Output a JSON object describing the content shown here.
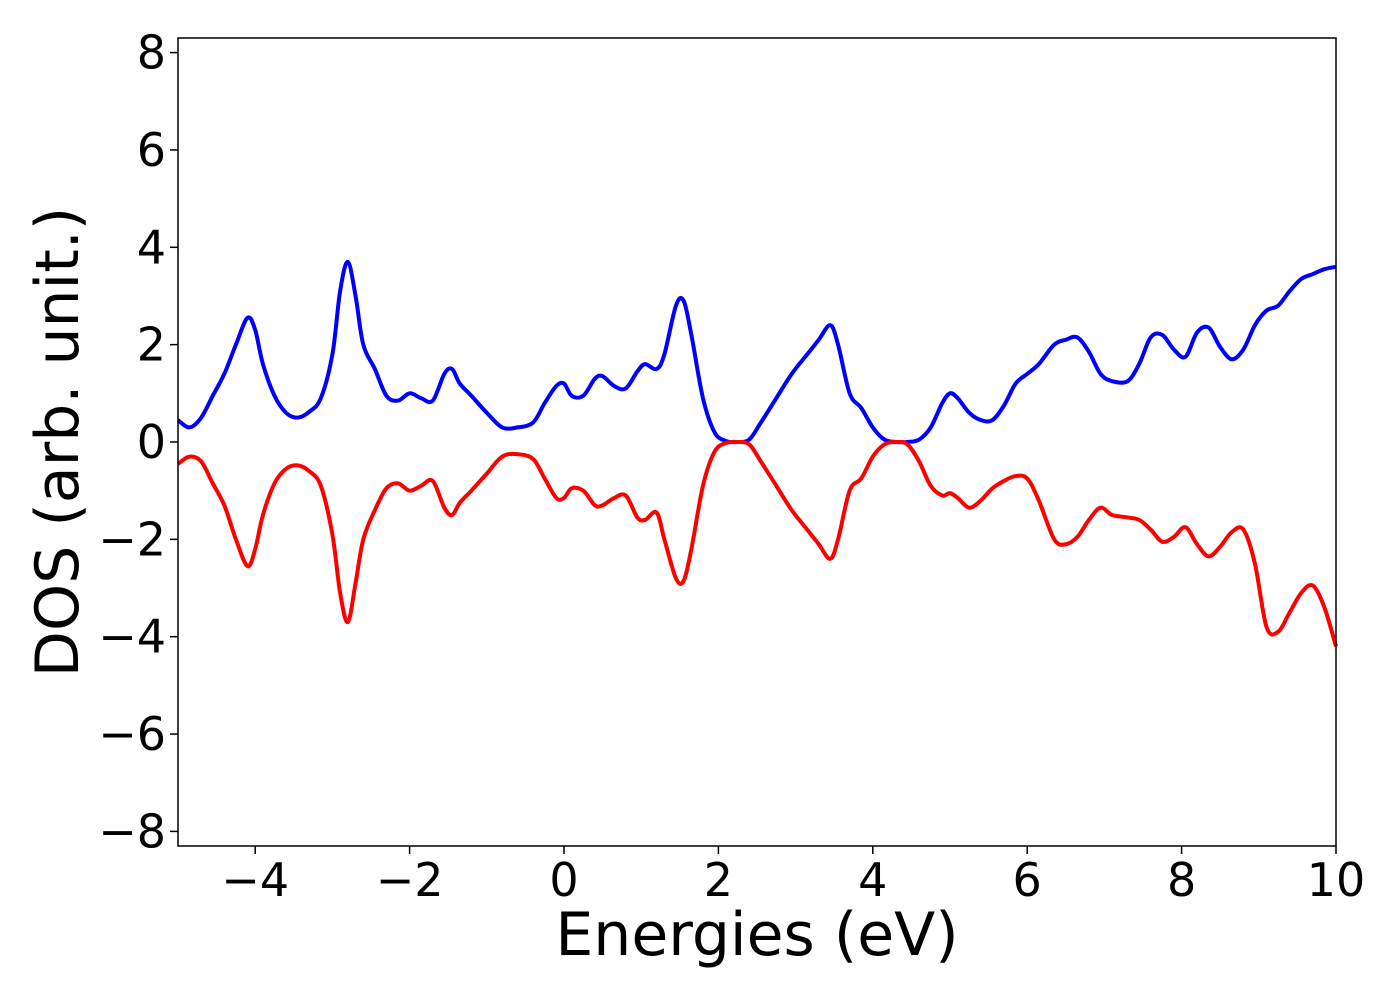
{
  "chart_data": {
    "type": "line",
    "title": "",
    "xlabel": "Energies (eV)",
    "ylabel": "DOS (arb. unit.)",
    "xlim": [
      -5,
      10
    ],
    "ylim": [
      -8.3,
      8.3
    ],
    "xticks": [
      -4,
      -2,
      0,
      2,
      4,
      6,
      8,
      10
    ],
    "xtick_labels": [
      "−4",
      "−2",
      "0",
      "2",
      "4",
      "6",
      "8",
      "10"
    ],
    "yticks": [
      8,
      6,
      4,
      2,
      0,
      -2,
      -4,
      -6,
      -8
    ],
    "ytick_labels": [
      "8",
      "6",
      "4",
      "2",
      "0",
      "−2",
      "−4",
      "−6",
      "−8"
    ],
    "grid": false,
    "series": [
      {
        "color": "#0000ff",
        "x": [
          -5.0,
          -4.85,
          -4.7,
          -4.55,
          -4.4,
          -4.25,
          -4.1,
          -4.0,
          -3.9,
          -3.75,
          -3.6,
          -3.45,
          -3.3,
          -3.15,
          -3.0,
          -2.9,
          -2.8,
          -2.7,
          -2.6,
          -2.45,
          -2.3,
          -2.15,
          -2.0,
          -1.85,
          -1.7,
          -1.55,
          -1.45,
          -1.35,
          -1.2,
          -1.0,
          -0.8,
          -0.6,
          -0.4,
          -0.25,
          -0.1,
          0.0,
          0.1,
          0.25,
          0.4,
          0.5,
          0.65,
          0.8,
          0.95,
          1.05,
          1.2,
          1.3,
          1.45,
          1.55,
          1.65,
          1.8,
          1.95,
          2.1,
          2.25,
          2.4,
          2.55,
          2.75,
          2.95,
          3.15,
          3.3,
          3.45,
          3.55,
          3.7,
          3.85,
          4.0,
          4.15,
          4.3,
          4.45,
          4.6,
          4.75,
          4.9,
          5.0,
          5.1,
          5.25,
          5.4,
          5.55,
          5.7,
          5.85,
          6.0,
          6.15,
          6.35,
          6.5,
          6.65,
          6.8,
          6.95,
          7.1,
          7.3,
          7.45,
          7.6,
          7.75,
          7.9,
          8.05,
          8.2,
          8.35,
          8.5,
          8.65,
          8.8,
          8.95,
          9.1,
          9.25,
          9.4,
          9.55,
          9.7,
          9.85,
          10.0
        ],
        "y": [
          0.45,
          0.3,
          0.5,
          0.95,
          1.4,
          2.0,
          2.55,
          2.3,
          1.6,
          0.95,
          0.6,
          0.5,
          0.62,
          0.9,
          1.8,
          3.1,
          3.7,
          3.0,
          2.0,
          1.5,
          0.95,
          0.85,
          1.0,
          0.9,
          0.85,
          1.4,
          1.5,
          1.2,
          0.95,
          0.6,
          0.3,
          0.3,
          0.4,
          0.8,
          1.15,
          1.2,
          0.95,
          0.95,
          1.3,
          1.35,
          1.15,
          1.1,
          1.45,
          1.6,
          1.5,
          1.8,
          2.8,
          2.9,
          2.2,
          0.9,
          0.2,
          0.02,
          0.0,
          0.05,
          0.4,
          0.9,
          1.4,
          1.8,
          2.1,
          2.4,
          2.0,
          1.0,
          0.7,
          0.3,
          0.05,
          0.0,
          0.0,
          0.05,
          0.3,
          0.8,
          1.0,
          0.9,
          0.6,
          0.45,
          0.45,
          0.75,
          1.2,
          1.4,
          1.6,
          2.0,
          2.1,
          2.15,
          1.85,
          1.4,
          1.25,
          1.25,
          1.6,
          2.15,
          2.2,
          1.9,
          1.75,
          2.25,
          2.35,
          1.95,
          1.7,
          1.9,
          2.4,
          2.7,
          2.8,
          3.1,
          3.35,
          3.45,
          3.55,
          3.6
        ]
      },
      {
        "color": "#ff0000",
        "x": [
          -5.0,
          -4.85,
          -4.7,
          -4.55,
          -4.4,
          -4.25,
          -4.1,
          -4.0,
          -3.9,
          -3.75,
          -3.6,
          -3.45,
          -3.3,
          -3.15,
          -3.0,
          -2.9,
          -2.8,
          -2.7,
          -2.6,
          -2.45,
          -2.3,
          -2.15,
          -2.0,
          -1.85,
          -1.7,
          -1.55,
          -1.45,
          -1.35,
          -1.2,
          -1.0,
          -0.8,
          -0.6,
          -0.4,
          -0.25,
          -0.1,
          0.0,
          0.1,
          0.25,
          0.4,
          0.5,
          0.65,
          0.8,
          0.95,
          1.05,
          1.2,
          1.3,
          1.45,
          1.55,
          1.65,
          1.8,
          1.95,
          2.1,
          2.25,
          2.4,
          2.55,
          2.75,
          2.95,
          3.15,
          3.3,
          3.45,
          3.55,
          3.7,
          3.85,
          4.0,
          4.15,
          4.3,
          4.45,
          4.6,
          4.75,
          4.9,
          5.0,
          5.1,
          5.25,
          5.4,
          5.55,
          5.7,
          5.85,
          6.0,
          6.15,
          6.35,
          6.5,
          6.65,
          6.8,
          6.95,
          7.1,
          7.3,
          7.45,
          7.6,
          7.75,
          7.9,
          8.05,
          8.2,
          8.35,
          8.5,
          8.65,
          8.8,
          8.95,
          9.1,
          9.25,
          9.4,
          9.55,
          9.7,
          9.85,
          10.0
        ],
        "y": [
          -0.45,
          -0.3,
          -0.4,
          -0.85,
          -1.3,
          -2.0,
          -2.55,
          -2.2,
          -1.5,
          -0.85,
          -0.55,
          -0.48,
          -0.6,
          -0.9,
          -1.9,
          -3.1,
          -3.7,
          -2.9,
          -2.0,
          -1.4,
          -0.95,
          -0.85,
          -1.0,
          -0.9,
          -0.8,
          -1.35,
          -1.5,
          -1.25,
          -1.0,
          -0.65,
          -0.3,
          -0.25,
          -0.35,
          -0.75,
          -1.15,
          -1.15,
          -0.95,
          -1.0,
          -1.3,
          -1.3,
          -1.15,
          -1.1,
          -1.55,
          -1.6,
          -1.45,
          -2.0,
          -2.8,
          -2.85,
          -2.2,
          -0.9,
          -0.2,
          -0.02,
          0.0,
          -0.05,
          -0.4,
          -0.9,
          -1.4,
          -1.8,
          -2.1,
          -2.4,
          -2.0,
          -1.0,
          -0.75,
          -0.3,
          -0.05,
          0.0,
          -0.05,
          -0.4,
          -0.9,
          -1.1,
          -1.05,
          -1.15,
          -1.35,
          -1.2,
          -0.95,
          -0.8,
          -0.7,
          -0.75,
          -1.2,
          -2.0,
          -2.1,
          -1.95,
          -1.6,
          -1.35,
          -1.5,
          -1.55,
          -1.6,
          -1.8,
          -2.05,
          -1.95,
          -1.75,
          -2.1,
          -2.35,
          -2.15,
          -1.85,
          -1.8,
          -2.5,
          -3.8,
          -3.9,
          -3.5,
          -3.1,
          -2.95,
          -3.4,
          -4.2
        ]
      }
    ]
  }
}
